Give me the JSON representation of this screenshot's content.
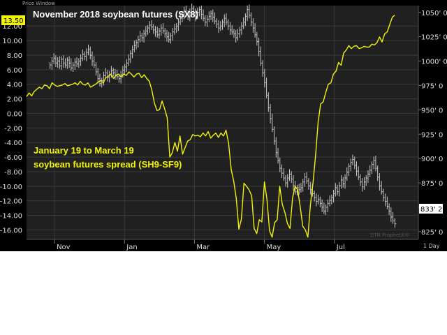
{
  "window": {
    "label": "Price Window",
    "watermark": "DTN ProphetX®",
    "period": "1 Day"
  },
  "colors": {
    "background": "#000000",
    "plot_background": "#202020",
    "futures": "#c8c8c8",
    "spread": "#f2f20a",
    "badge_yellow": "#f2f20a",
    "badge_white": "#ffffff"
  },
  "chart_data": {
    "type": "line",
    "title": "November 2018 soybean futures (SX8)",
    "annotation": [
      "January 19 to March 19",
      "soybean futures spread (SH9-SF9)"
    ],
    "x_ticks": [
      "Nov",
      "Jan",
      "Mar",
      "May",
      "Jul"
    ],
    "y_left": {
      "ticks": [
        "12.00",
        "10.00",
        "8.00",
        "6.00",
        "4.00",
        "2.00",
        "0.00",
        "-2.00",
        "-4.00",
        "-6.00",
        "-8.00",
        "-10.00",
        "-12.00",
        "-14.00",
        "-16.00"
      ],
      "range": [
        -17.3,
        14.8
      ]
    },
    "y_right": {
      "ticks": [
        "1050' 0",
        "1025' 0",
        "1000' 0",
        "975' 0",
        "950' 0",
        "925' 0",
        "900' 0",
        "875' 0",
        "850' 0",
        "825' 0"
      ],
      "range": [
        817,
        1057
      ]
    },
    "last_values": {
      "spread": "13.50",
      "futures": "833' 2"
    },
    "grid": true,
    "series": [
      {
        "name": "November 2018 soybean futures (SX8)",
        "style": "ohlc-bars",
        "axis": "right",
        "values": [
          996,
          1000,
          1003,
          998,
          1000,
          995,
          1002,
          998,
          996,
          1001,
          998,
          993,
          996,
          999,
          997,
          1000,
          1003,
          1007,
          1005,
          1009,
          1012,
          1006,
          1000,
          996,
          989,
          982,
          977,
          980,
          985,
          988,
          983,
          986,
          990,
          988,
          986,
          984,
          982,
          986,
          990,
          994,
          998,
          1002,
          1008,
          1012,
          1016,
          1019,
          1022,
          1026,
          1024,
          1028,
          1031,
          1034,
          1037,
          1035,
          1032,
          1030,
          1027,
          1031,
          1034,
          1031,
          1028,
          1025,
          1022,
          1026,
          1030,
          1033,
          1036,
          1040,
          1044,
          1048,
          1052,
          1049,
          1046,
          1050,
          1054,
          1050,
          1046,
          1050,
          1053,
          1048,
          1044,
          1040,
          1043,
          1046,
          1049,
          1045,
          1041,
          1038,
          1034,
          1036,
          1040,
          1044,
          1040,
          1036,
          1032,
          1030,
          1028,
          1024,
          1028,
          1032,
          1036,
          1040,
          1046,
          1053,
          1047,
          1040,
          1034,
          1027,
          1020,
          1010,
          998,
          988,
          978,
          965,
          952,
          941,
          930,
          918,
          906,
          898,
          890,
          885,
          880,
          875,
          880,
          884,
          879,
          872,
          866,
          870,
          868,
          870,
          876,
          881,
          877,
          872,
          868,
          864,
          860,
          856,
          858,
          854,
          850,
          846,
          850,
          854,
          857,
          860,
          864,
          870,
          866,
          872,
          878,
          874,
          880,
          886,
          892,
          896,
          899,
          893,
          887,
          881,
          876,
          871,
          876,
          880,
          884,
          888,
          894,
          898,
          890,
          881,
          872,
          866,
          860,
          856,
          851,
          846,
          840,
          836,
          833
        ],
        "range": [
          0.06,
          0.94
        ],
        "value_unit": "cents per bushel"
      },
      {
        "name": "January 19 to March 19 soybean futures spread (SH9-SF9)",
        "style": "line",
        "axis": "left",
        "values": [
          2.3,
          2.8,
          2.4,
          3.0,
          3.3,
          3.6,
          3.4,
          3.9,
          3.8,
          3.4,
          4.2,
          3.9,
          3.7,
          3.8,
          3.9,
          4.1,
          3.8,
          3.9,
          4.0,
          4.2,
          3.9,
          4.4,
          4.0,
          3.9,
          4.2,
          3.6,
          3.8,
          4.0,
          4.3,
          4.5,
          4.2,
          4.9,
          5.1,
          5.4,
          4.8,
          5.2,
          5.4,
          5.0,
          5.4,
          5.2,
          5.7,
          5.4,
          5.0,
          5.4,
          5.5,
          4.9,
          5.3,
          4.8,
          4.4,
          3.2,
          1.4,
          0.4,
          0.5,
          1.7,
          0.6,
          -0.6,
          -6.0,
          -5.4,
          -4.0,
          -5.2,
          -3.1,
          -5.6,
          -4.7,
          -3.8,
          -3.6,
          -2.9,
          -3.1,
          -3.0,
          -3.2,
          -2.7,
          -3.1,
          -2.5,
          -3.4,
          -3.0,
          -2.7,
          -3.3,
          -2.7,
          -3.1,
          -2.3,
          -4.1,
          -7.7,
          -9.3,
          -11.7,
          -15.9,
          -14.5,
          -9.6,
          -10.0,
          -10.5,
          -11.3,
          -15.8,
          -16.5,
          -14.6,
          -14.9,
          -9.4,
          -11.8,
          -16.1,
          -17.0,
          -15.0,
          -14.6,
          -10.0,
          -12.5,
          -13.6,
          -15.1,
          -15.8,
          -11.6,
          -10.0,
          -10.5,
          -12.8,
          -15.5,
          -16.0,
          -17.0,
          -12.5,
          -9.5,
          -5.8,
          -1.2,
          1.3,
          1.6,
          2.9,
          4.0,
          4.2,
          5.4,
          5.8,
          7.0,
          6.6,
          8.3,
          8.7,
          9.3,
          8.9,
          9.2,
          9.3,
          8.9,
          9.0,
          9.2,
          9.1,
          9.1,
          9.5,
          9.4,
          9.7,
          10.5,
          9.8,
          10.9,
          11.2,
          12.2,
          13.2,
          13.5
        ],
        "range": [
          0,
          0.94
        ]
      }
    ]
  }
}
